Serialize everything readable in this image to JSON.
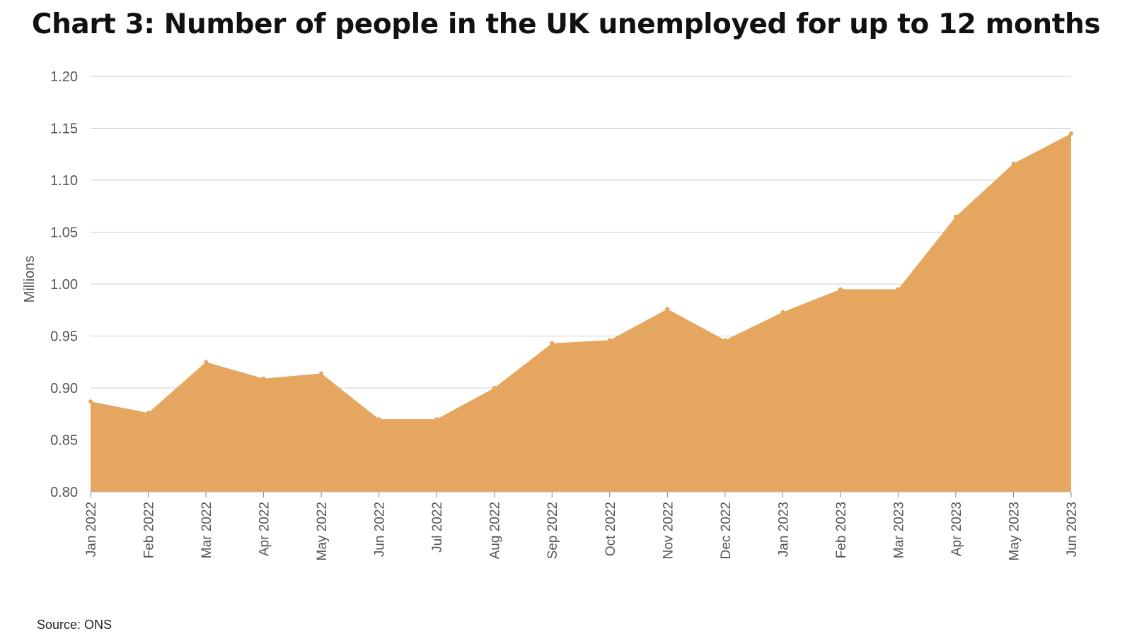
{
  "source": "Source: ONS",
  "chart_data": {
    "type": "area",
    "title": "Chart 3: Number of people in the UK unemployed for up to 12 months",
    "ylabel": "Millions",
    "xlabel": "",
    "ylim": [
      0.8,
      1.2
    ],
    "yticks": [
      "0.80",
      "0.85",
      "0.90",
      "0.95",
      "1.00",
      "1.05",
      "1.10",
      "1.15",
      "1.20"
    ],
    "grid": true,
    "legend": "none",
    "fill_color": "#E5A65F",
    "categories": [
      "Jan 2022",
      "Feb 2022",
      "Mar 2022",
      "Apr 2022",
      "May 2022",
      "Jun 2022",
      "Jul 2022",
      "Aug 2022",
      "Sep 2022",
      "Oct 2022",
      "Nov 2022",
      "Dec 2022",
      "Jan 2023",
      "Feb 2023",
      "Mar 2023",
      "Apr 2023",
      "May 2023",
      "Jun 2023"
    ],
    "values": [
      0.887,
      0.876,
      0.925,
      0.909,
      0.914,
      0.87,
      0.87,
      0.9,
      0.943,
      0.946,
      0.976,
      0.946,
      0.973,
      0.995,
      0.995,
      1.065,
      1.116,
      1.145
    ]
  }
}
